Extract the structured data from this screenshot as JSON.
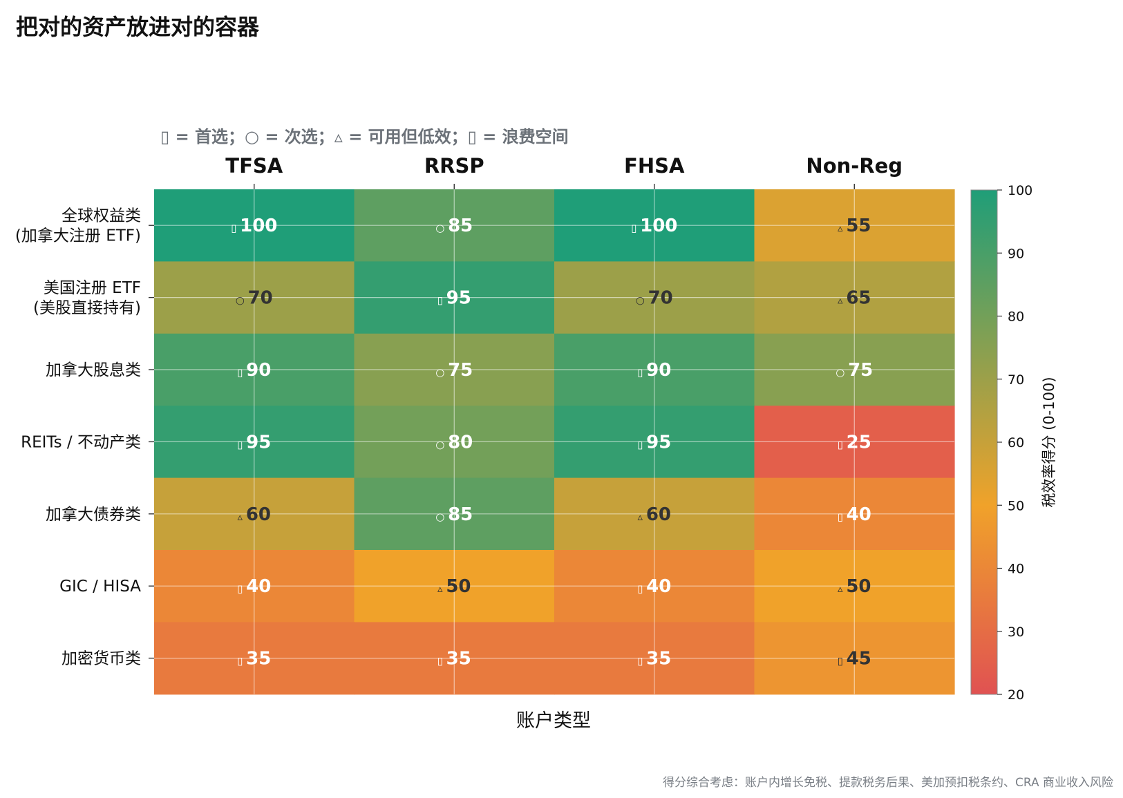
{
  "title": "把对的资产放进对的容器",
  "legend_note": "▯ = 首选；○ = 次选；▵ = 可用但低效；▯ = 浪费空间",
  "footnote": "得分综合考虑：账户内增长免税、提款税务后果、美加预扣税条约、CRA 商业收入风险",
  "colors": {
    "low": "#e05252",
    "mid": "#f0a22a",
    "high": "#1f9e78",
    "light_text": "#ffffff",
    "dark_text": "#333333"
  },
  "chart_data": {
    "type": "heatmap",
    "title": "",
    "xlabel": "账户类型",
    "columns": [
      "TFSA",
      "RRSP",
      "FHSA",
      "Non-Reg"
    ],
    "rows": [
      [
        "全球权益类",
        "(加拿大注册 ETF)"
      ],
      [
        "美国注册 ETF",
        "(美股直接持有)"
      ],
      [
        "加拿大股息类"
      ],
      [
        "REITs / 不动产类"
      ],
      [
        "加拿大债券类"
      ],
      [
        "GIC / HISA"
      ],
      [
        "加密货币类"
      ]
    ],
    "values": [
      [
        100,
        85,
        100,
        55
      ],
      [
        70,
        95,
        70,
        65
      ],
      [
        90,
        75,
        90,
        75
      ],
      [
        95,
        80,
        95,
        25
      ],
      [
        60,
        85,
        60,
        40
      ],
      [
        40,
        50,
        40,
        50
      ],
      [
        35,
        35,
        35,
        45
      ]
    ],
    "symbols": [
      [
        "▯",
        "○",
        "▯",
        "▵"
      ],
      [
        "○",
        "▯",
        "○",
        "▵"
      ],
      [
        "▯",
        "○",
        "▯",
        "○"
      ],
      [
        "▯",
        "○",
        "▯",
        "▯"
      ],
      [
        "▵",
        "○",
        "▵",
        "▯"
      ],
      [
        "▯",
        "▵",
        "▯",
        "▵"
      ],
      [
        "▯",
        "▯",
        "▯",
        "▯"
      ]
    ],
    "colorbar": {
      "label": "税效率得分 (0-100)",
      "range": [
        20,
        100
      ],
      "ticks": [
        100,
        90,
        80,
        70,
        60,
        50,
        40,
        30,
        20
      ]
    },
    "grid": true
  }
}
